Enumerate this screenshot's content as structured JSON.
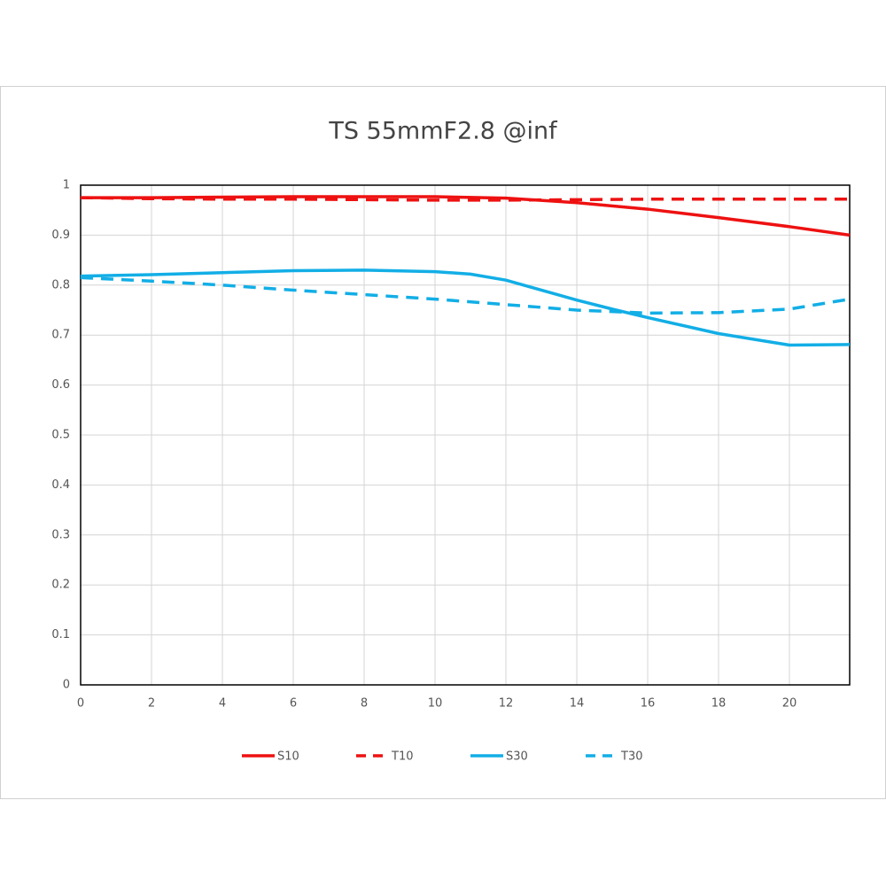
{
  "chart_data": {
    "type": "line",
    "title": "TS 55mmF2.8 @inf",
    "xlim": [
      0,
      21.7
    ],
    "xticks": [
      0,
      2,
      4,
      6,
      8,
      10,
      12,
      14,
      16,
      18,
      20
    ],
    "ylim": [
      0,
      1
    ],
    "yticks": [
      0,
      0.1,
      0.2,
      0.3,
      0.4,
      0.5,
      0.6,
      0.7,
      0.8,
      0.9,
      1
    ],
    "grid": true,
    "series": [
      {
        "name": "S10",
        "color": "#ee1111",
        "dash": false,
        "x": [
          0,
          2,
          4,
          6,
          8,
          10,
          12,
          14,
          16,
          18,
          20,
          21.7
        ],
        "values": [
          0.975,
          0.975,
          0.976,
          0.977,
          0.977,
          0.977,
          0.974,
          0.965,
          0.952,
          0.935,
          0.917,
          0.9
        ]
      },
      {
        "name": "T10",
        "color": "#ee1111",
        "dash": true,
        "x": [
          0,
          2,
          4,
          6,
          8,
          10,
          12,
          14,
          16,
          18,
          20,
          21.7
        ],
        "values": [
          0.975,
          0.973,
          0.972,
          0.972,
          0.971,
          0.97,
          0.97,
          0.971,
          0.972,
          0.972,
          0.972,
          0.972
        ]
      },
      {
        "name": "S30",
        "color": "#12aee6",
        "dash": false,
        "x": [
          0,
          2,
          4,
          6,
          8,
          10,
          11,
          12,
          13,
          14,
          15,
          16,
          18,
          20,
          21.7
        ],
        "values": [
          0.818,
          0.821,
          0.825,
          0.829,
          0.83,
          0.827,
          0.822,
          0.81,
          0.79,
          0.77,
          0.752,
          0.735,
          0.703,
          0.68,
          0.681
        ]
      },
      {
        "name": "T30",
        "color": "#12aee6",
        "dash": true,
        "x": [
          0,
          2,
          4,
          6,
          8,
          10,
          12,
          14,
          16,
          18,
          20,
          21.7
        ],
        "values": [
          0.815,
          0.808,
          0.8,
          0.79,
          0.781,
          0.772,
          0.761,
          0.75,
          0.744,
          0.745,
          0.752,
          0.772
        ]
      }
    ]
  }
}
